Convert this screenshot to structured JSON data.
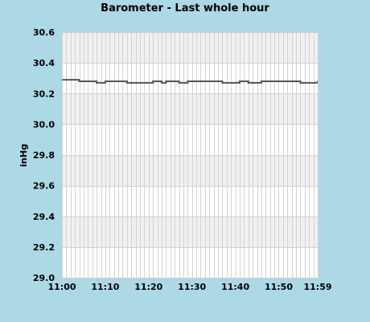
{
  "chart_data": {
    "type": "line",
    "title": "Barometer - Last whole hour",
    "xlabel": "",
    "ylabel": "inHg",
    "ylim": [
      29.0,
      30.6
    ],
    "y_ticks": [
      "29.0",
      "29.2",
      "29.4",
      "29.6",
      "29.8",
      "30.0",
      "30.2",
      "30.4",
      "30.6"
    ],
    "x_tick_labels": [
      "11:00",
      "11:10",
      "11:20",
      "11:30",
      "11:40",
      "11:50",
      "11:59"
    ],
    "x_range_minutes": [
      0,
      59
    ],
    "grid": true,
    "colors": {
      "background": "#add8e6",
      "plot_band_light": "#ffffff",
      "plot_band_dark": "#f0f0f0",
      "grid": "#d3d3d3",
      "line": "#555555"
    },
    "series": [
      {
        "minutes": [
          0,
          1,
          2,
          3,
          4,
          5,
          6,
          7,
          8,
          9,
          10,
          11,
          12,
          13,
          14,
          15,
          16,
          17,
          18,
          19,
          20,
          21,
          22,
          23,
          24,
          25,
          26,
          27,
          28,
          29,
          30,
          31,
          32,
          33,
          34,
          35,
          36,
          37,
          38,
          39,
          40,
          41,
          42,
          43,
          44,
          45,
          46,
          47,
          48,
          49,
          50,
          51,
          52,
          53,
          54,
          55,
          56,
          57,
          58,
          59
        ],
        "values": [
          30.29,
          30.29,
          30.29,
          30.29,
          30.28,
          30.28,
          30.28,
          30.28,
          30.27,
          30.27,
          30.28,
          30.28,
          30.28,
          30.28,
          30.28,
          30.27,
          30.27,
          30.27,
          30.27,
          30.27,
          30.27,
          30.28,
          30.28,
          30.27,
          30.28,
          30.28,
          30.28,
          30.27,
          30.27,
          30.28,
          30.28,
          30.28,
          30.28,
          30.28,
          30.28,
          30.28,
          30.28,
          30.27,
          30.27,
          30.27,
          30.27,
          30.28,
          30.28,
          30.27,
          30.27,
          30.27,
          30.28,
          30.28,
          30.28,
          30.28,
          30.28,
          30.28,
          30.28,
          30.28,
          30.28,
          30.27,
          30.27,
          30.27,
          30.27,
          30.28
        ]
      }
    ]
  }
}
